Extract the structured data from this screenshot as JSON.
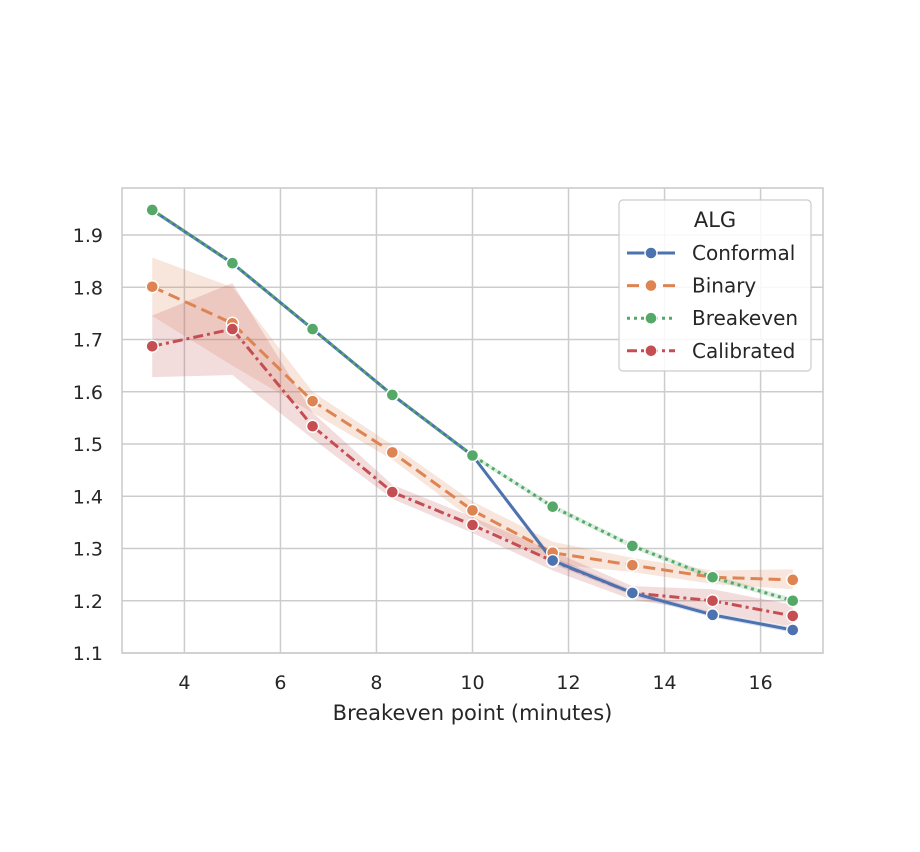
{
  "chart_data": {
    "type": "line",
    "title": "",
    "xlabel": "Breakeven point (minutes)",
    "ylabel": "",
    "xlim": [
      2.7,
      17.3
    ],
    "ylim": [
      1.1,
      1.99
    ],
    "xticks": [
      4,
      6,
      8,
      10,
      12,
      14,
      16
    ],
    "yticks": [
      1.1,
      1.2,
      1.3,
      1.4,
      1.5,
      1.6,
      1.7,
      1.8,
      1.9
    ],
    "grid": true,
    "legend": {
      "title": "ALG",
      "placement": "top-right"
    },
    "x": [
      3.33,
      5.0,
      6.67,
      8.33,
      10.0,
      11.67,
      13.33,
      15.0,
      16.67
    ],
    "series": [
      {
        "name": "Conformal",
        "color": "#4c72b0",
        "linestyle": "solid",
        "values": [
          1.948,
          1.846,
          1.72,
          1.594,
          1.478,
          1.277,
          1.215,
          1.173,
          1.144
        ],
        "band_low": [
          1.944,
          1.842,
          1.716,
          1.59,
          1.474,
          1.27,
          1.21,
          1.168,
          1.139
        ],
        "band_high": [
          1.952,
          1.85,
          1.724,
          1.598,
          1.482,
          1.284,
          1.22,
          1.178,
          1.149
        ]
      },
      {
        "name": "Binary",
        "color": "#dd8452",
        "linestyle": "dashed",
        "values": [
          1.801,
          1.731,
          1.582,
          1.484,
          1.373,
          1.292,
          1.268,
          1.245,
          1.24
        ],
        "band_low": [
          1.745,
          1.65,
          1.56,
          1.47,
          1.355,
          1.27,
          1.255,
          1.232,
          1.222
        ],
        "band_high": [
          1.857,
          1.8,
          1.6,
          1.498,
          1.39,
          1.313,
          1.282,
          1.258,
          1.26
        ]
      },
      {
        "name": "Breakeven",
        "color": "#55a868",
        "linestyle": "dotted",
        "values": [
          1.948,
          1.846,
          1.72,
          1.594,
          1.478,
          1.38,
          1.305,
          1.245,
          1.2
        ],
        "band_low": [
          1.944,
          1.842,
          1.716,
          1.59,
          1.474,
          1.375,
          1.3,
          1.24,
          1.195
        ],
        "band_high": [
          1.952,
          1.85,
          1.724,
          1.598,
          1.482,
          1.385,
          1.31,
          1.25,
          1.205
        ]
      },
      {
        "name": "Calibrated",
        "color": "#c44e52",
        "linestyle": "dashdot",
        "values": [
          1.687,
          1.72,
          1.534,
          1.408,
          1.345,
          1.276,
          1.215,
          1.2,
          1.171
        ],
        "band_low": [
          1.628,
          1.632,
          1.51,
          1.395,
          1.33,
          1.258,
          1.202,
          1.178,
          1.15
        ],
        "band_high": [
          1.746,
          1.808,
          1.56,
          1.422,
          1.36,
          1.295,
          1.228,
          1.222,
          1.192
        ]
      }
    ]
  }
}
